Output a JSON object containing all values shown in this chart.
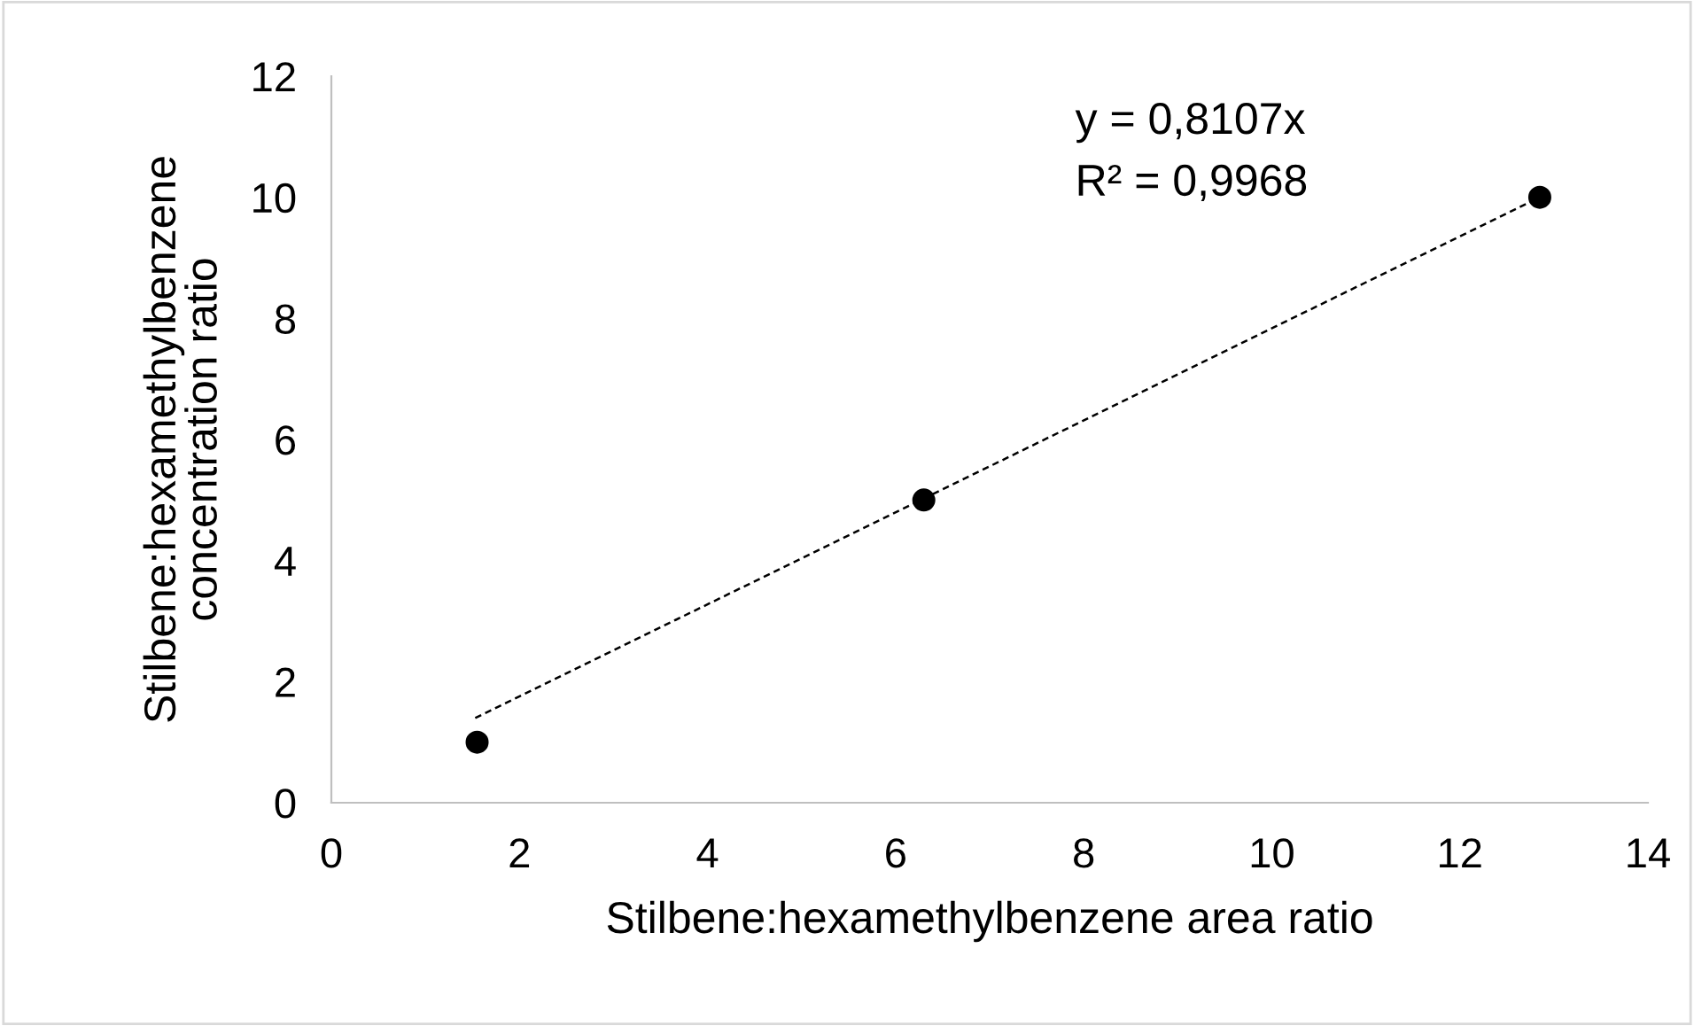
{
  "chart_data": {
    "type": "scatter",
    "xlabel": "Stilbene:hexamethylbenzene area ratio",
    "ylabel": "Stilbene:hexamethylbenzene\nconcentration ratio",
    "series": [
      {
        "color": "#000000",
        "x": [
          1.55,
          6.3,
          12.85
        ],
        "values": [
          1,
          5,
          10
        ],
        "marker": "circle"
      },
      {
        "type": "line",
        "color": "#000000",
        "x": [
          1.53,
          12.85
        ],
        "values": [
          1.4,
          10.0
        ],
        "line_style": "dashed",
        "marker": "none"
      }
    ],
    "annotations": [
      "y = 0,8107x",
      "R² = 0,9968"
    ],
    "xlim": [
      0,
      14
    ],
    "xticks": [
      0,
      2,
      4,
      6,
      8,
      10,
      12,
      14
    ],
    "ylim": [
      0,
      12
    ],
    "yticks": [
      0,
      2,
      4,
      6,
      8,
      10,
      12
    ],
    "grid": false,
    "legend": false
  }
}
